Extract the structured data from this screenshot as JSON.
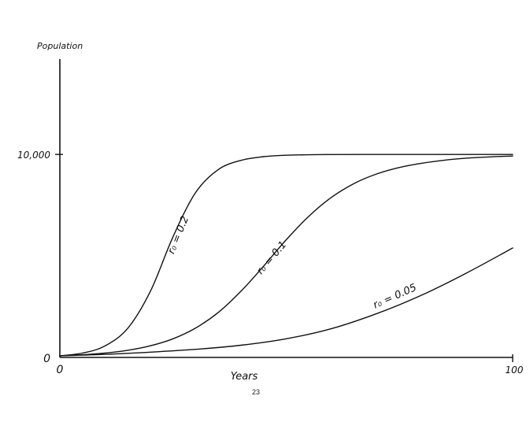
{
  "chart_data": {
    "type": "line",
    "title": "",
    "ylabel": "Population",
    "xlabel": "Years",
    "xlim": [
      0,
      100
    ],
    "ylim": [
      0,
      14700
    ],
    "x_ticks": [
      {
        "value": 0,
        "label": "0"
      },
      {
        "value": 100,
        "label": "100"
      }
    ],
    "y_ticks": [
      {
        "value": 0,
        "label": "0"
      },
      {
        "value": 10000,
        "label": "10,000"
      }
    ],
    "carrying_capacity": 10000,
    "initial_population": 80,
    "legend": "none (curves labeled directly)",
    "grid": false,
    "series": [
      {
        "name": "r₀ = 0.2",
        "x": [
          0,
          5,
          10,
          15,
          20,
          25,
          30,
          35,
          40,
          45,
          50,
          55,
          60,
          70,
          80,
          90,
          100
        ],
        "y": [
          80,
          215,
          570,
          1440,
          3260,
          5950,
          8130,
          9260,
          9710,
          9890,
          9960,
          9985,
          9995,
          10000,
          10000,
          10000,
          10000
        ]
      },
      {
        "name": "r₀ = 0.1",
        "x": [
          0,
          5,
          10,
          15,
          20,
          25,
          30,
          35,
          40,
          45,
          50,
          55,
          60,
          65,
          70,
          75,
          80,
          85,
          90,
          95,
          100
        ],
        "y": [
          80,
          131,
          216,
          353,
          573,
          920,
          1450,
          2220,
          3260,
          4500,
          5800,
          6960,
          7890,
          8570,
          9040,
          9360,
          9570,
          9720,
          9820,
          9880,
          9920
        ]
      },
      {
        "name": "r₀ = 0.05",
        "x": [
          0,
          10,
          20,
          30,
          40,
          50,
          60,
          70,
          80,
          90,
          100
        ],
        "y": [
          80,
          150,
          260,
          400,
          600,
          920,
          1420,
          2160,
          3080,
          4180,
          5390
        ]
      }
    ]
  },
  "page_number": "23"
}
